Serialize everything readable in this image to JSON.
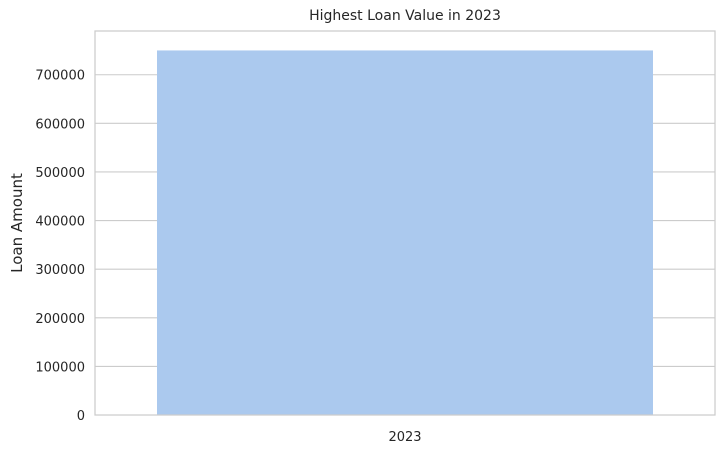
{
  "chart_data": {
    "type": "bar",
    "title": "Highest Loan Value in 2023",
    "xlabel": "",
    "ylabel": "Loan Amount",
    "categories": [
      "2023"
    ],
    "values": [
      750000
    ],
    "ylim": [
      0,
      790000
    ],
    "yticks": [
      0,
      100000,
      200000,
      300000,
      400000,
      500000,
      600000,
      700000
    ],
    "grid": "horizontal",
    "colors": {
      "bar": "#abc9ee",
      "grid": "#cccccc",
      "text": "#262626"
    }
  }
}
